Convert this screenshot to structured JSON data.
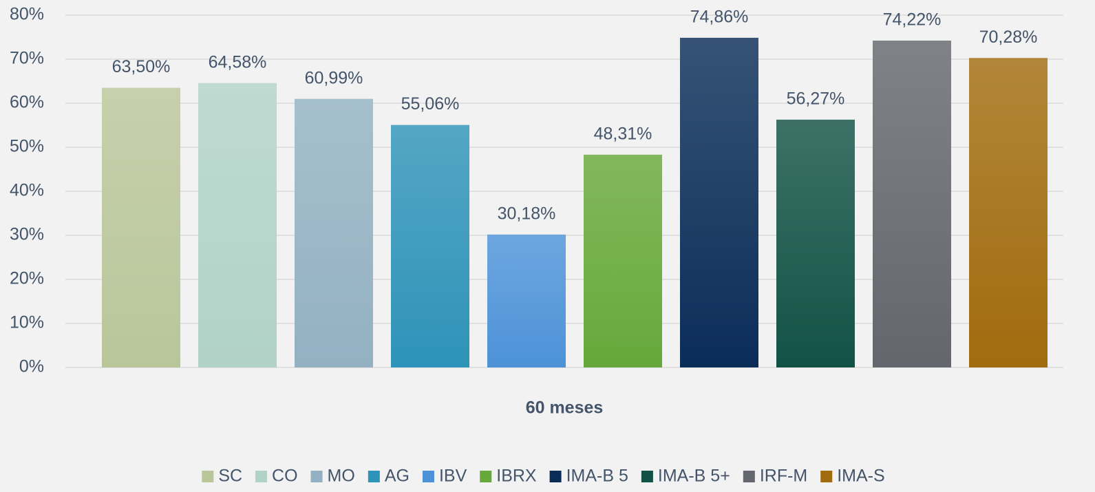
{
  "chart_data": {
    "type": "bar",
    "categories": [
      "60 meses"
    ],
    "series": [
      {
        "name": "SC",
        "color": "#b9c69a",
        "values": [
          63.5
        ],
        "value_labels": [
          "63,50%"
        ]
      },
      {
        "name": "CO",
        "color": "#b1d2c7",
        "values": [
          64.58
        ],
        "value_labels": [
          "64,58%"
        ]
      },
      {
        "name": "MO",
        "color": "#93b1c2",
        "values": [
          60.99
        ],
        "value_labels": [
          "60,99%"
        ]
      },
      {
        "name": "AG",
        "color": "#2e93b8",
        "values": [
          55.06
        ],
        "value_labels": [
          "55,06%"
        ]
      },
      {
        "name": "IBV",
        "color": "#4d92d8",
        "values": [
          30.18
        ],
        "value_labels": [
          "30,18%"
        ]
      },
      {
        "name": "IBRX",
        "color": "#66a83a",
        "values": [
          48.31
        ],
        "value_labels": [
          "48,31%"
        ]
      },
      {
        "name": "IMA-B 5",
        "color": "#0a2d58",
        "values": [
          74.86
        ],
        "value_labels": [
          "74,86%"
        ]
      },
      {
        "name": "IMA-B 5+",
        "color": "#125246",
        "values": [
          56.27
        ],
        "value_labels": [
          "56,27%"
        ]
      },
      {
        "name": "IRF-M",
        "color": "#63666c",
        "values": [
          74.22
        ],
        "value_labels": [
          "74,22%"
        ]
      },
      {
        "name": "IMA-S",
        "color": "#a16b0e",
        "values": [
          70.28
        ],
        "value_labels": [
          "70,28%"
        ]
      }
    ],
    "ylim": [
      0,
      80
    ],
    "yticks": [
      {
        "value": 0,
        "label": "0%"
      },
      {
        "value": 10,
        "label": "10%"
      },
      {
        "value": 20,
        "label": "20%"
      },
      {
        "value": 30,
        "label": "30%"
      },
      {
        "value": 40,
        "label": "40%"
      },
      {
        "value": 50,
        "label": "50%"
      },
      {
        "value": 60,
        "label": "60%"
      },
      {
        "value": 70,
        "label": "70%"
      },
      {
        "value": 80,
        "label": "80%"
      }
    ],
    "grid": true,
    "legend": "bottom"
  }
}
